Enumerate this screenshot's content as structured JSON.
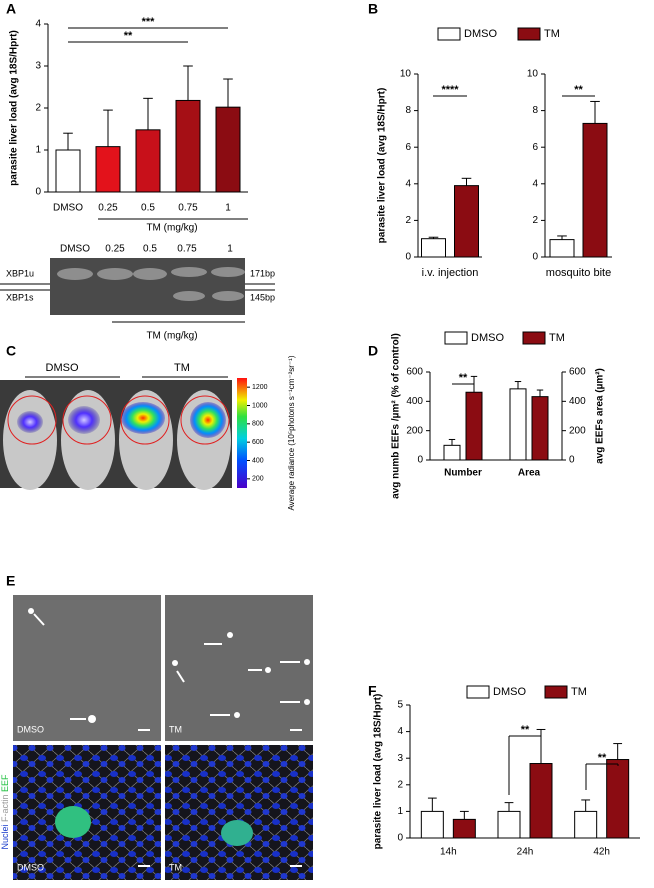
{
  "panel_letters": [
    "A",
    "B",
    "C",
    "D",
    "E",
    "F"
  ],
  "chart_data": [
    {
      "type": "bar",
      "categories": [
        "DMSO",
        "0.25",
        "0.5",
        "0.75",
        "1"
      ],
      "values": [
        1.0,
        1.08,
        1.48,
        2.18,
        2.02
      ],
      "errors": [
        0.4,
        0.87,
        0.75,
        0.82,
        0.67
      ],
      "colors": [
        "#ffffff",
        "#e3121b",
        "#c8101a",
        "#a50f15",
        "#8b0c12"
      ],
      "ylim": [
        0,
        4
      ],
      "yticks": [
        0,
        1,
        2,
        3,
        4
      ],
      "ylabel": "parasite liver load (avg 18S/Hprt)",
      "xlabel": "TM (mg/kg)",
      "annotations": [
        "***",
        "**"
      ]
    },
    {
      "type": "bar",
      "categories": [
        "i.v. injection"
      ],
      "series": [
        {
          "name": "DMSO",
          "color": "#ffffff",
          "values": [
            1.0
          ],
          "errors": [
            0.08
          ]
        },
        {
          "name": "TM",
          "color": "#8b0c12",
          "values": [
            3.9
          ],
          "errors": [
            0.4
          ]
        }
      ],
      "ylim": [
        0,
        10
      ],
      "yticks": [
        0,
        2,
        4,
        6,
        8,
        10
      ],
      "ylabel": "parasite liver load (avg 18S/Hprt)",
      "annotations": [
        "****"
      ],
      "legend": "top"
    },
    {
      "type": "bar",
      "categories": [
        "mosquito bite"
      ],
      "series": [
        {
          "color": "#ffffff",
          "values": [
            0.95
          ],
          "errors": [
            0.2
          ]
        },
        {
          "color": "#8b0c12",
          "values": [
            7.3
          ],
          "errors": [
            1.2
          ]
        }
      ],
      "ylim": [
        0,
        10
      ],
      "yticks": [
        0,
        2,
        4,
        6,
        8,
        10
      ],
      "annotations": [
        "**"
      ]
    },
    {
      "type": "bar",
      "categories": [
        "Number",
        "Area"
      ],
      "category_axes": [
        "y",
        "y2"
      ],
      "series": [
        {
          "name": "DMSO",
          "color": "#ffffff",
          "values": [
            100,
            485
          ],
          "errors": [
            40,
            50
          ]
        },
        {
          "name": "TM",
          "color": "#8b0c12",
          "values": [
            462,
            432
          ],
          "errors": [
            108,
            45
          ]
        }
      ],
      "ylim": [
        0,
        600
      ],
      "yticks": [
        0,
        200,
        400,
        600
      ],
      "y2lim": [
        0,
        600
      ],
      "y2ticks": [
        0,
        200,
        400,
        600
      ],
      "ylabel": "avg numb EEFs /µm² (% of control)",
      "y2label": "avg EEFs area (µm²)",
      "annotations": [
        "**"
      ],
      "legend": "top"
    },
    {
      "type": "bar",
      "categories": [
        "14h",
        "24h",
        "42h"
      ],
      "series": [
        {
          "name": "DMSO",
          "color": "#ffffff",
          "values": [
            1.0,
            1.0,
            1.0
          ],
          "errors": [
            0.5,
            0.33,
            0.43
          ]
        },
        {
          "name": "TM",
          "color": "#8b0c12",
          "values": [
            0.7,
            2.8,
            2.95
          ],
          "errors": [
            0.3,
            1.28,
            0.6
          ]
        }
      ],
      "ylim": [
        0,
        5
      ],
      "yticks": [
        0,
        1,
        2,
        3,
        4,
        5
      ],
      "ylabel": "parasite liver load (avg 18S/Hprt)",
      "annotations": [
        "**",
        "**"
      ],
      "legend": "top"
    }
  ],
  "gel": {
    "lane_labels": [
      "DMSO",
      "0.25",
      "0.5",
      "0.75",
      "1"
    ],
    "band_labels": [
      "XBP1u",
      "XBP1s"
    ],
    "band_sizes": [
      "171bp",
      "145bp"
    ],
    "xlabel": "TM (mg/kg)"
  },
  "imaging": {
    "groups": [
      "DMSO",
      "TM"
    ],
    "colorbar_lim": [
      100,
      1300
    ],
    "colorbar_ticks": [
      200,
      400,
      600,
      800,
      1000,
      1200
    ],
    "colorbar_label": "Average radiance (10⁵photons s⁻¹cm⁻²sr⁻¹)"
  },
  "microscopy": {
    "panel_labels": [
      "DMSO",
      "TM",
      "DMSO",
      "TM"
    ],
    "stain_labels": [
      "Nuclei",
      "F-actin",
      "EEF"
    ]
  }
}
